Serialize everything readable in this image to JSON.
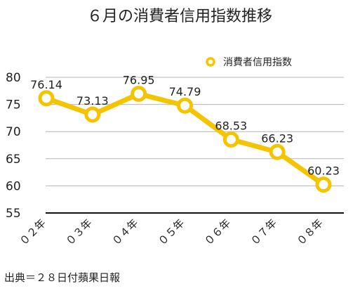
{
  "chart_data": {
    "type": "line",
    "title": "６月の消費者信用指数推移",
    "categories": [
      "０２年",
      "０３年",
      "０４年",
      "０５年",
      "０６年",
      "０７年",
      "０８年"
    ],
    "series": [
      {
        "name": "消費者信用指数",
        "values": [
          76.14,
          73.13,
          76.95,
          74.79,
          68.53,
          66.23,
          60.23
        ],
        "labels": [
          "76.14",
          "73.13",
          "76.95",
          "74.79",
          "68.53",
          "66.23",
          "60.23"
        ],
        "color": "#F5C400"
      }
    ],
    "ylim": [
      55,
      80
    ],
    "yticks": [
      55,
      60,
      65,
      70,
      75,
      80
    ],
    "grid": true,
    "legend_position": "top-right",
    "xlabel": "",
    "ylabel": "",
    "source": "出典＝２８日付蘋果日報"
  }
}
